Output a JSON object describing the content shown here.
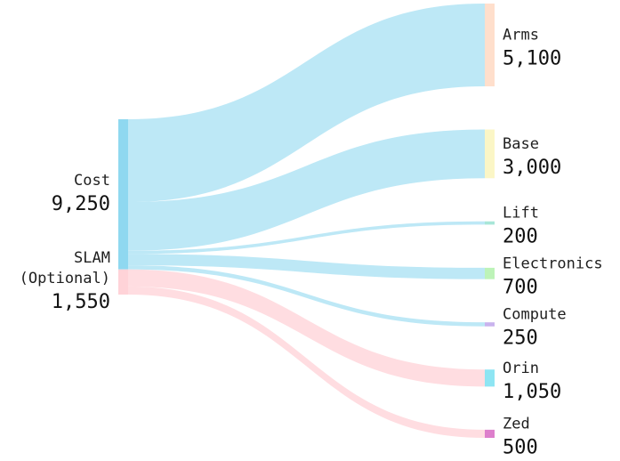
{
  "chart_data": {
    "type": "sankey",
    "title": "",
    "sources": [
      {
        "id": "cost",
        "label_lines": [
          "Cost"
        ],
        "value_text": "9,250",
        "value": 9250,
        "color": "#8fd8f0"
      },
      {
        "id": "slam",
        "label_lines": [
          "SLAM",
          "(Optional)"
        ],
        "value_text": "1,550",
        "value": 1550,
        "color": "#ffd3d8"
      }
    ],
    "targets": [
      {
        "id": "arms",
        "label": "Arms",
        "value_text": "5,100",
        "value": 5100,
        "color": "#ffdfcc"
      },
      {
        "id": "base",
        "label": "Base",
        "value_text": "3,000",
        "value": 3000,
        "color": "#fbf6c6"
      },
      {
        "id": "lift",
        "label": "Lift",
        "value_text": "200",
        "value": 200,
        "color": "#a8e6d8"
      },
      {
        "id": "electronics",
        "label": "Electronics",
        "value_text": "700",
        "value": 700,
        "color": "#bdf3b8"
      },
      {
        "id": "compute",
        "label": "Compute",
        "value_text": "250",
        "value": 250,
        "color": "#c9b3ee"
      },
      {
        "id": "orin",
        "label": "Orin",
        "value_text": "1,050",
        "value": 1050,
        "color": "#8ee5f3"
      },
      {
        "id": "zed",
        "label": "Zed",
        "value_text": "500",
        "value": 500,
        "color": "#dd7fcc"
      }
    ],
    "links": [
      {
        "source": "cost",
        "target": "arms",
        "value": 5100,
        "color": "#bde8f6"
      },
      {
        "source": "cost",
        "target": "base",
        "value": 3000,
        "color": "#bde8f6"
      },
      {
        "source": "cost",
        "target": "lift",
        "value": 200,
        "color": "#bde8f6"
      },
      {
        "source": "cost",
        "target": "electronics",
        "value": 700,
        "color": "#bde8f6"
      },
      {
        "source": "cost",
        "target": "compute",
        "value": 250,
        "color": "#bde8f6"
      },
      {
        "source": "slam",
        "target": "orin",
        "value": 1050,
        "color": "#ffdde1"
      },
      {
        "source": "slam",
        "target": "zed",
        "value": 500,
        "color": "#ffdde1"
      }
    ]
  }
}
